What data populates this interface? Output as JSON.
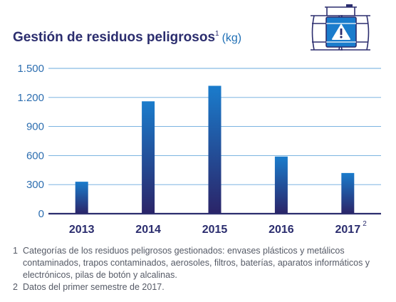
{
  "chart_data": {
    "type": "bar",
    "title": "Gestión de residuos peligrosos",
    "title_footnote_mark": "1",
    "unit_label": "(kg)",
    "categories": [
      "2013",
      "2014",
      "2015",
      "2016",
      "2017"
    ],
    "category_footnote_marks": [
      "",
      "",
      "",
      "",
      "2"
    ],
    "values": [
      330,
      1160,
      1320,
      590,
      420
    ],
    "yticks": [
      0,
      300,
      600,
      900,
      1200,
      1500
    ],
    "ytick_labels": [
      "0",
      "300",
      "600",
      "900",
      "1.200",
      "1.500"
    ],
    "ylim": [
      0,
      1500
    ],
    "grid": true,
    "colors": {
      "bar_top": "#1a7ccc",
      "bar_bottom": "#2b2468",
      "grid": "#6aa9dd",
      "text": "#2b2d6e"
    }
  },
  "icon": {
    "name": "hazardous-barrels-icon"
  },
  "footnotes": [
    {
      "num": "1",
      "text": "Categorías de los residuos peligrosos gestionados: envases plásticos y metálicos contaminados, trapos contaminados, aerosoles, filtros, baterías, aparatos informáticos y electrónicos, pilas de botón y alcalinas."
    },
    {
      "num": "2",
      "text": "Datos del primer semestre de 2017."
    }
  ]
}
